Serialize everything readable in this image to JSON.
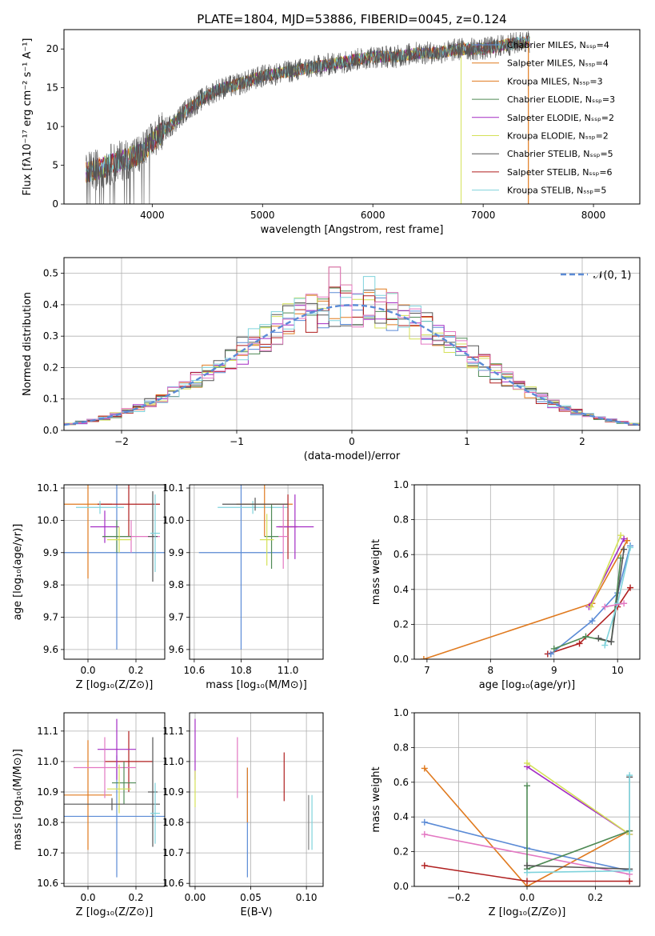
{
  "colors": {
    "blue": "#5b8bd6",
    "orange": "#e07a1f",
    "green": "#4f8a55",
    "red": "#b01f1f",
    "purple": "#a32cc4",
    "brown": "#8c564b",
    "pink": "#e377c2",
    "gray": "#7f7f7f",
    "olive": "#d4e157",
    "cyan": "#7fd3dc",
    "dark": "#555555"
  },
  "chart_data": [
    {
      "type": "line",
      "id": "spectrum",
      "title": "PLATE=1804, MJD=53886, FIBERID=0045, z=0.124",
      "xlabel": "wavelength [Angstrom, rest frame]",
      "ylabel": "Flux [fλ10⁻¹⁷ erg cm⁻² s⁻¹ A⁻¹]",
      "xlim": [
        3200,
        8420
      ],
      "ylim": [
        0,
        22.5
      ],
      "xticks": [
        "4000",
        "5000",
        "6000",
        "7000",
        "8000"
      ],
      "yticks": [
        "0",
        "5",
        "10",
        "15",
        "20"
      ],
      "legend_position": "top-right",
      "series": [
        {
          "name": "Chabrier MILES, N_SSP=4",
          "color": "#5b8bd6"
        },
        {
          "name": "Salpeter MILES, N_SSP=4",
          "color": "#e07a1f"
        },
        {
          "name": "Kroupa MILES, N_SSP=3",
          "color": "#e07a1f"
        },
        {
          "name": "Chabrier ELODIE, N_SSP=3",
          "color": "#4f8a55"
        },
        {
          "name": "Salpeter ELODIE, N_SSP=2",
          "color": "#a32cc4"
        },
        {
          "name": "Kroupa ELODIE, N_SSP=2",
          "color": "#d4e157"
        },
        {
          "name": "Chabrier STELIB, N_SSP=5",
          "color": "#555555"
        },
        {
          "name": "Salpeter STELIB, N_SSP=6",
          "color": "#b01f1f"
        },
        {
          "name": "Kroupa STELIB, N_SSP=5",
          "color": "#7fd3dc"
        }
      ],
      "envelope": {
        "x": [
          3400,
          3500,
          3600,
          3700,
          3800,
          3900,
          4000,
          4100,
          4200,
          4300,
          4400,
          4500,
          4600,
          4800,
          5000,
          5200,
          5400,
          5600,
          5800,
          6000,
          6200,
          6400,
          6600,
          6800,
          7000,
          7200,
          7400
        ],
        "y": [
          4,
          4.5,
          5,
          5.5,
          6,
          6.5,
          8,
          9.5,
          10.5,
          12,
          13,
          14,
          14.8,
          15.5,
          16.5,
          17,
          17.5,
          18,
          18.5,
          19,
          19,
          19.5,
          19.5,
          20,
          20,
          20.5,
          21
        ]
      }
    },
    {
      "type": "line",
      "id": "residuals",
      "xlabel": "(data-model)/error",
      "ylabel": "Normed distribution",
      "xlim": [
        -2.5,
        2.5
      ],
      "ylim": [
        0,
        0.55
      ],
      "xticks": [
        "−2",
        "−1",
        "0",
        "1",
        "2"
      ],
      "yticks": [
        "0.0",
        "0.1",
        "0.2",
        "0.3",
        "0.4",
        "0.5"
      ],
      "legend_position": "top-right",
      "reference": {
        "name": "𝒩(0, 1)",
        "color": "#5b8bd6",
        "mu": 0,
        "sigma": 1
      },
      "histogram_colors": [
        "#5b8bd6",
        "#e07a1f",
        "#4f8a55",
        "#a32cc4",
        "#d4e157",
        "#555555",
        "#b01f1f",
        "#7fd3dc",
        "#e377c2"
      ],
      "bin_width": 0.1
    },
    {
      "type": "scatter",
      "id": "z-age",
      "xlabel": "Z [log₁₀(Z/Z⊙)]",
      "ylabel": "age  [log₁₀(age/yr)]",
      "xlim": [
        -0.1,
        0.32
      ],
      "ylim": [
        9.57,
        10.11
      ],
      "xticks": [
        "0.0",
        "0.2"
      ],
      "yticks": [
        "9.6",
        "9.7",
        "9.8",
        "9.9",
        "10.0",
        "10.1"
      ],
      "points": [
        {
          "x": 0.12,
          "y": 9.9,
          "xerr": 0.23,
          "yerr": 0.3,
          "color": "#5b8bd6"
        },
        {
          "x": 0.0,
          "y": 10.05,
          "xerr": 0.1,
          "yerr": 0.23,
          "color": "#e07a1f"
        },
        {
          "x": 0.17,
          "y": 10.05,
          "xerr": 0.13,
          "yerr": 0.1,
          "color": "#b01f1f"
        },
        {
          "x": 0.07,
          "y": 9.98,
          "xerr": 0.06,
          "yerr": 0.05,
          "color": "#a32cc4"
        },
        {
          "x": 0.18,
          "y": 9.95,
          "xerr": 0.12,
          "yerr": 0.05,
          "color": "#e377c2"
        },
        {
          "x": 0.12,
          "y": 9.95,
          "xerr": 0.06,
          "yerr": 0.05,
          "color": "#4f8a55"
        },
        {
          "x": 0.27,
          "y": 9.95,
          "xerr": 0.02,
          "yerr": 0.14,
          "color": "#555555"
        },
        {
          "x": 0.28,
          "y": 9.96,
          "xerr": 0.02,
          "yerr": 0.12,
          "color": "#7fd3dc"
        },
        {
          "x": 0.13,
          "y": 9.94,
          "xerr": 0.05,
          "yerr": 0.04,
          "color": "#d4e157"
        },
        {
          "x": 0.05,
          "y": 10.04,
          "xerr": 0.1,
          "yerr": 0.02,
          "color": "#7fd3dc"
        }
      ]
    },
    {
      "type": "scatter",
      "id": "mass-age",
      "xlabel": "mass [log₁₀(M/M⊙)]",
      "ylabel": "",
      "xlim": [
        10.58,
        11.15
      ],
      "ylim": [
        9.57,
        10.11
      ],
      "xticks": [
        "10.6",
        "10.8",
        "11.0"
      ],
      "yticks": [
        "9.6",
        "9.7",
        "9.8",
        "9.9",
        "10.0",
        "10.1"
      ],
      "points": [
        {
          "x": 10.8,
          "y": 9.9,
          "xerr": 0.18,
          "yerr": 0.3,
          "color": "#5b8bd6"
        },
        {
          "x": 10.85,
          "y": 10.04,
          "xerr": 0.15,
          "yerr": 0.02,
          "color": "#7fd3dc"
        },
        {
          "x": 10.9,
          "y": 10.05,
          "xerr": 0.12,
          "yerr": 0.1,
          "color": "#e07a1f"
        },
        {
          "x": 11.0,
          "y": 9.98,
          "xerr": 0.04,
          "yerr": 0.1,
          "color": "#b01f1f"
        },
        {
          "x": 11.03,
          "y": 9.98,
          "xerr": 0.08,
          "yerr": 0.1,
          "color": "#a32cc4"
        },
        {
          "x": 10.98,
          "y": 9.95,
          "xerr": 0.02,
          "yerr": 0.1,
          "color": "#e377c2"
        },
        {
          "x": 10.93,
          "y": 9.95,
          "xerr": 0.03,
          "yerr": 0.1,
          "color": "#4f8a55"
        },
        {
          "x": 10.91,
          "y": 9.94,
          "xerr": 0.03,
          "yerr": 0.08,
          "color": "#d4e157"
        },
        {
          "x": 10.86,
          "y": 10.05,
          "xerr": 0.14,
          "yerr": 0.02,
          "color": "#555555"
        }
      ]
    },
    {
      "type": "line",
      "id": "age-weight",
      "xlabel": "age  [log₁₀(age/yr)]",
      "ylabel": "mass weight",
      "xlim": [
        6.8,
        10.35
      ],
      "ylim": [
        0,
        1.0
      ],
      "xticks": [
        "7",
        "8",
        "9",
        "10"
      ],
      "yticks": [
        "0.0",
        "0.2",
        "0.4",
        "0.6",
        "0.8",
        "1.0"
      ],
      "series": [
        {
          "color": "#e07a1f",
          "x": [
            6.95,
            9.6,
            10.15
          ],
          "y": [
            0.0,
            0.32,
            0.68
          ]
        },
        {
          "color": "#b01f1f",
          "x": [
            8.9,
            9.4,
            10.0,
            10.2
          ],
          "y": [
            0.03,
            0.09,
            0.3,
            0.41
          ]
        },
        {
          "color": "#5b8bd6",
          "x": [
            8.95,
            9.6,
            10.0,
            10.2
          ],
          "y": [
            0.03,
            0.22,
            0.38,
            0.65
          ]
        },
        {
          "color": "#4f8a55",
          "x": [
            9.0,
            9.5,
            9.9,
            10.05
          ],
          "y": [
            0.06,
            0.13,
            0.1,
            0.58
          ]
        },
        {
          "color": "#a32cc4",
          "x": [
            9.55,
            10.1
          ],
          "y": [
            0.3,
            0.69
          ]
        },
        {
          "color": "#d4e157",
          "x": [
            9.58,
            10.05
          ],
          "y": [
            0.3,
            0.71
          ]
        },
        {
          "color": "#555555",
          "x": [
            9.7,
            9.9,
            10.1
          ],
          "y": [
            0.12,
            0.1,
            0.63
          ]
        },
        {
          "color": "#7fd3dc",
          "x": [
            9.8,
            10.0,
            10.2
          ],
          "y": [
            0.08,
            0.32,
            0.64
          ]
        },
        {
          "color": "#e377c2",
          "x": [
            9.8,
            10.1
          ],
          "y": [
            0.3,
            0.32
          ]
        }
      ]
    },
    {
      "type": "scatter",
      "id": "z-mass",
      "xlabel": "Z [log₁₀(Z/Z⊙)]",
      "ylabel": "mass [log₁₀(M/M⊙)]",
      "xlim": [
        -0.1,
        0.32
      ],
      "ylim": [
        10.59,
        11.16
      ],
      "xticks": [
        "0.0",
        "0.2"
      ],
      "yticks": [
        "10.6",
        "10.7",
        "10.8",
        "10.9",
        "11.0",
        "11.1"
      ],
      "points": [
        {
          "x": 0.12,
          "y": 10.82,
          "xerr": 0.23,
          "yerr": 0.2,
          "color": "#5b8bd6"
        },
        {
          "x": 0.0,
          "y": 10.89,
          "xerr": 0.1,
          "yerr": 0.18,
          "color": "#e07a1f"
        },
        {
          "x": 0.17,
          "y": 11.0,
          "xerr": 0.1,
          "yerr": 0.1,
          "color": "#b01f1f"
        },
        {
          "x": 0.12,
          "y": 11.04,
          "xerr": 0.08,
          "yerr": 0.1,
          "color": "#a32cc4"
        },
        {
          "x": 0.07,
          "y": 10.98,
          "xerr": 0.13,
          "yerr": 0.1,
          "color": "#e377c2"
        },
        {
          "x": 0.15,
          "y": 10.93,
          "xerr": 0.05,
          "yerr": 0.07,
          "color": "#4f8a55"
        },
        {
          "x": 0.27,
          "y": 10.9,
          "xerr": 0.02,
          "yerr": 0.18,
          "color": "#555555"
        },
        {
          "x": 0.13,
          "y": 10.91,
          "xerr": 0.05,
          "yerr": 0.08,
          "color": "#d4e157"
        },
        {
          "x": 0.1,
          "y": 10.86,
          "xerr": 0.2,
          "yerr": 0.02,
          "color": "#555555"
        },
        {
          "x": 0.28,
          "y": 10.83,
          "xerr": 0.02,
          "yerr": 0.1,
          "color": "#7fd3dc"
        }
      ]
    },
    {
      "type": "scatter",
      "id": "ebv-mass",
      "xlabel": "E(B-V)",
      "ylabel": "",
      "xlim": [
        -0.005,
        0.115
      ],
      "ylim": [
        10.59,
        11.16
      ],
      "xticks": [
        "0.00",
        "0.05",
        "0.10"
      ],
      "yticks": [
        "10.6",
        "10.7",
        "10.8",
        "10.9",
        "11.0",
        "11.1"
      ],
      "points": [
        {
          "x": 0.0,
          "y": 11.04,
          "yerr": 0.1,
          "color": "#a32cc4"
        },
        {
          "x": 0.0,
          "y": 10.91,
          "yerr": 0.06,
          "color": "#d4e157"
        },
        {
          "x": 0.038,
          "y": 10.98,
          "yerr": 0.1,
          "color": "#e377c2"
        },
        {
          "x": 0.047,
          "y": 10.8,
          "yerr": 0.18,
          "color": "#5b8bd6"
        },
        {
          "x": 0.047,
          "y": 10.89,
          "yerr": 0.09,
          "color": "#e07a1f"
        },
        {
          "x": 0.08,
          "y": 10.95,
          "yerr": 0.08,
          "color": "#b01f1f"
        },
        {
          "x": 0.102,
          "y": 10.8,
          "yerr": 0.09,
          "color": "#7f7f7f"
        },
        {
          "x": 0.105,
          "y": 10.8,
          "yerr": 0.09,
          "color": "#7fd3dc"
        }
      ]
    },
    {
      "type": "line",
      "id": "z-weight",
      "xlabel": "Z [log₁₀(Z/Z⊙)]",
      "ylabel": "mass weight",
      "xlim": [
        -0.33,
        0.33
      ],
      "ylim": [
        0,
        1.0
      ],
      "xticks": [
        "−0.2",
        "0.0",
        "0.2"
      ],
      "yticks": [
        "0.0",
        "0.2",
        "0.4",
        "0.6",
        "0.8",
        "1.0"
      ],
      "series": [
        {
          "color": "#e07a1f",
          "x": [
            -0.3,
            0.0,
            0.3
          ],
          "y": [
            0.68,
            0.0,
            0.32
          ]
        },
        {
          "color": "#5b8bd6",
          "x": [
            -0.3,
            0.0,
            0.3
          ],
          "y": [
            0.37,
            0.22,
            0.09
          ]
        },
        {
          "color": "#e377c2",
          "x": [
            -0.3,
            0.3
          ],
          "y": [
            0.3,
            0.07
          ]
        },
        {
          "color": "#b01f1f",
          "x": [
            -0.3,
            0.0,
            0.3
          ],
          "y": [
            0.12,
            0.03,
            0.03
          ]
        },
        {
          "color": "#a32cc4",
          "x": [
            0.0,
            0.3
          ],
          "y": [
            0.69,
            0.3
          ]
        },
        {
          "color": "#d4e157",
          "x": [
            0.0,
            0.3
          ],
          "y": [
            0.71,
            0.3
          ]
        },
        {
          "color": "#4f8a55",
          "x": [
            0.0,
            0.0,
            0.3
          ],
          "y": [
            0.58,
            0.1,
            0.32
          ]
        },
        {
          "color": "#555555",
          "x": [
            0.0,
            0.3,
            0.3
          ],
          "y": [
            0.12,
            0.1,
            0.63
          ]
        },
        {
          "color": "#7fd3dc",
          "x": [
            0.0,
            0.3,
            0.3
          ],
          "y": [
            0.08,
            0.09,
            0.64
          ]
        }
      ]
    }
  ]
}
